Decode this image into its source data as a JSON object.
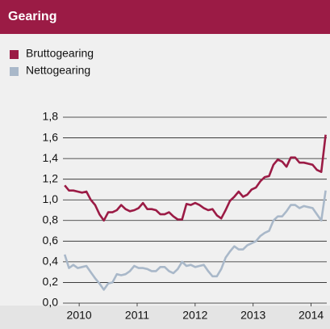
{
  "chart_data": {
    "type": "line",
    "title": "Gearing",
    "legend": "top-left",
    "grid": true,
    "x": [
      2009.75,
      2009.825,
      2009.9,
      2009.975,
      2010.05,
      2010.125,
      2010.2,
      2010.275,
      2010.35,
      2010.425,
      2010.5,
      2010.575,
      2010.65,
      2010.725,
      2010.8,
      2010.875,
      2010.95,
      2011.025,
      2011.1,
      2011.175,
      2011.25,
      2011.325,
      2011.4,
      2011.475,
      2011.55,
      2011.625,
      2011.7,
      2011.775,
      2011.85,
      2011.925,
      2012.0,
      2012.075,
      2012.15,
      2012.225,
      2012.3,
      2012.375,
      2012.45,
      2012.525,
      2012.6,
      2012.675,
      2012.75,
      2012.825,
      2012.9,
      2012.975,
      2013.05,
      2013.125,
      2013.2,
      2013.275,
      2013.35,
      2013.425,
      2013.5,
      2013.575,
      2013.65,
      2013.725,
      2013.8,
      2013.875,
      2013.95,
      2014.025,
      2014.1,
      2014.175,
      2014.25
    ],
    "series": [
      {
        "name": "Bruttogearing",
        "color": "#9b1b45",
        "values": [
          1.14,
          1.09,
          1.09,
          1.08,
          1.07,
          1.08,
          1.0,
          0.95,
          0.86,
          0.8,
          0.88,
          0.88,
          0.9,
          0.95,
          0.91,
          0.89,
          0.9,
          0.92,
          0.97,
          0.91,
          0.91,
          0.9,
          0.86,
          0.86,
          0.88,
          0.84,
          0.81,
          0.81,
          0.96,
          0.95,
          0.97,
          0.95,
          0.92,
          0.9,
          0.91,
          0.85,
          0.82,
          0.9,
          0.99,
          1.03,
          1.08,
          1.03,
          1.05,
          1.1,
          1.12,
          1.18,
          1.22,
          1.23,
          1.34,
          1.39,
          1.37,
          1.32,
          1.41,
          1.41,
          1.36,
          1.36,
          1.35,
          1.34,
          1.29,
          1.27,
          1.63
        ]
      },
      {
        "name": "Nettogearing",
        "color": "#a9b8c9",
        "values": [
          0.47,
          0.34,
          0.37,
          0.34,
          0.35,
          0.36,
          0.3,
          0.24,
          0.19,
          0.13,
          0.19,
          0.2,
          0.28,
          0.27,
          0.28,
          0.31,
          0.36,
          0.34,
          0.34,
          0.33,
          0.31,
          0.31,
          0.35,
          0.35,
          0.31,
          0.29,
          0.33,
          0.4,
          0.36,
          0.37,
          0.35,
          0.36,
          0.37,
          0.31,
          0.26,
          0.26,
          0.33,
          0.44,
          0.5,
          0.55,
          0.52,
          0.52,
          0.56,
          0.58,
          0.6,
          0.65,
          0.68,
          0.7,
          0.8,
          0.84,
          0.84,
          0.89,
          0.95,
          0.95,
          0.92,
          0.94,
          0.93,
          0.92,
          0.86,
          0.8,
          1.09
        ]
      }
    ],
    "xlim": [
      2009.72,
      2014.27
    ],
    "xticks": [
      2010,
      2011,
      2012,
      2013,
      2014
    ],
    "ylim": [
      0,
      1.8
    ],
    "yticks": [
      {
        "value": 0,
        "label": "0,0"
      },
      {
        "value": 0.2,
        "label": "0,2"
      },
      {
        "value": 0.4,
        "label": "0,4"
      },
      {
        "value": 0.6,
        "label": "0,6"
      },
      {
        "value": 0.8,
        "label": "0,8"
      },
      {
        "value": 1.0,
        "label": "1,0"
      },
      {
        "value": 1.2,
        "label": "1,2"
      },
      {
        "value": 1.4,
        "label": "1,4"
      },
      {
        "value": 1.6,
        "label": "1,6"
      },
      {
        "value": 1.8,
        "label": "1,8"
      }
    ]
  }
}
